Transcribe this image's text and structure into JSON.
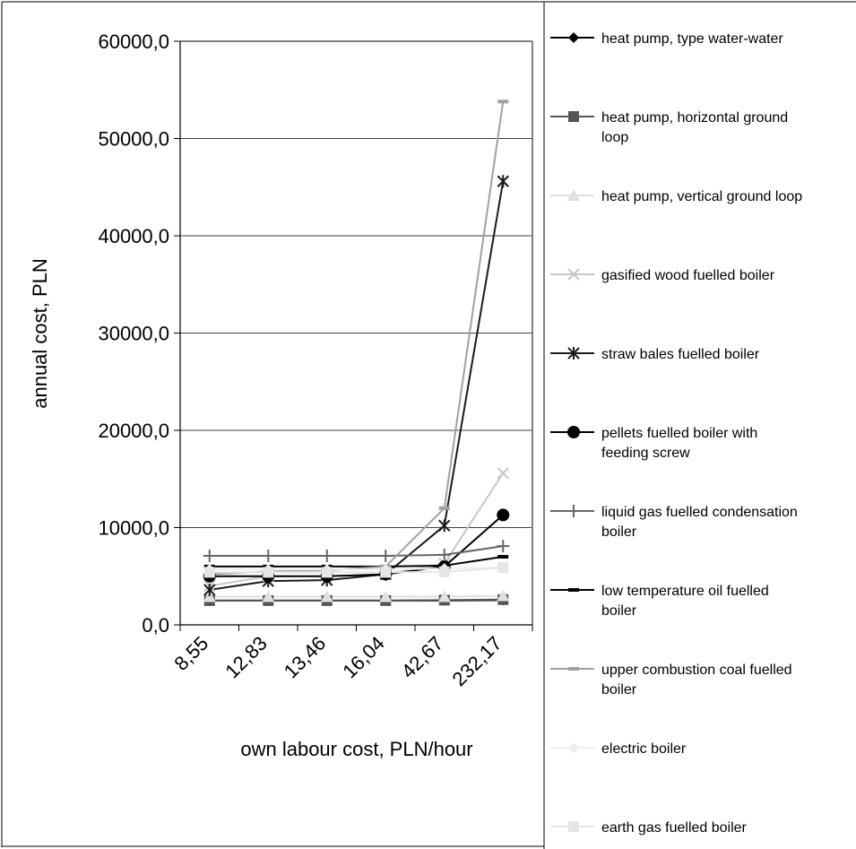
{
  "chart_data": {
    "type": "line",
    "xlabel": "own labour cost, PLN/hour",
    "ylabel": "annual cost, PLN",
    "categories": [
      "8,55",
      "12,83",
      "13,46",
      "16,04",
      "42,67",
      "232,17"
    ],
    "ylim": [
      0,
      60000
    ],
    "y_ticks": [
      {
        "value": 0,
        "label": "0,0"
      },
      {
        "value": 10000,
        "label": "10000,0"
      },
      {
        "value": 20000,
        "label": "20000,0"
      },
      {
        "value": 30000,
        "label": "30000,0"
      },
      {
        "value": 40000,
        "label": "40000,0"
      },
      {
        "value": 50000,
        "label": "50000,0"
      },
      {
        "value": 60000,
        "label": "60000,0"
      }
    ],
    "grid": "horizontal",
    "legend_position": "right",
    "series": [
      {
        "name": "heat pump, type water-water",
        "label_lines": [
          "heat pump, type water-water"
        ],
        "color": "#000000",
        "marker": "diamond",
        "values": [
          2500,
          2500,
          2500,
          2500,
          2500,
          2550
        ]
      },
      {
        "name": "heat pump, horizontal ground loop",
        "label_lines": [
          "heat pump, horizontal ground",
          "loop"
        ],
        "color": "#555555",
        "marker": "square",
        "values": [
          2500,
          2500,
          2500,
          2500,
          2550,
          2600
        ]
      },
      {
        "name": "heat pump, vertical ground loop",
        "label_lines": [
          "heat pump, vertical ground loop"
        ],
        "color": "#e0e0e0",
        "marker": "triangle",
        "values": [
          2900,
          2900,
          2900,
          2900,
          2900,
          3000
        ]
      },
      {
        "name": "gasified wood fuelled boiler",
        "label_lines": [
          "gasified wood fuelled boiler"
        ],
        "color": "#c8c8c8",
        "marker": "x",
        "values": [
          4000,
          5000,
          5000,
          5200,
          6300,
          15600
        ]
      },
      {
        "name": "straw bales fuelled boiler",
        "label_lines": [
          "straw bales fuelled boiler"
        ],
        "color": "#1a1a1a",
        "marker": "star",
        "values": [
          3600,
          4500,
          4600,
          5200,
          10200,
          45600
        ]
      },
      {
        "name": "pellets fuelled boiler with feeding screw",
        "label_lines": [
          "pellets fuelled boiler with",
          "feeding screw"
        ],
        "color": "#000000",
        "marker": "circle",
        "values": [
          5000,
          5000,
          5000,
          5200,
          6000,
          11300
        ]
      },
      {
        "name": "liquid gas fuelled condensation boiler",
        "label_lines": [
          "liquid gas fuelled condensation",
          "boiler"
        ],
        "color": "#666666",
        "marker": "plus",
        "values": [
          7100,
          7100,
          7100,
          7100,
          7200,
          8100
        ]
      },
      {
        "name": "low temperature oil fuelled boiler",
        "label_lines": [
          "low temperature oil fuelled",
          "boiler"
        ],
        "color": "#000000",
        "marker": "dash",
        "values": [
          6000,
          6000,
          6000,
          6000,
          6100,
          7000
        ]
      },
      {
        "name": "upper combustion coal fuelled boiler",
        "label_lines": [
          "upper combustion coal fuelled",
          "boiler"
        ],
        "color": "#a0a0a0",
        "marker": "dash",
        "values": [
          5200,
          5500,
          5600,
          6000,
          12000,
          53800
        ]
      },
      {
        "name": "electric boiler",
        "label_lines": [
          "electric boiler"
        ],
        "color": "#eeeeee",
        "marker": "diamond",
        "values": [
          5700,
          5700,
          5700,
          5700,
          5800,
          5900
        ]
      },
      {
        "name": "earth gas fuelled boiler",
        "label_lines": [
          "earth gas fuelled boiler"
        ],
        "color": "#e6e6e6",
        "marker": "square",
        "values": [
          5400,
          5400,
          5400,
          5400,
          5450,
          5900
        ]
      }
    ]
  }
}
